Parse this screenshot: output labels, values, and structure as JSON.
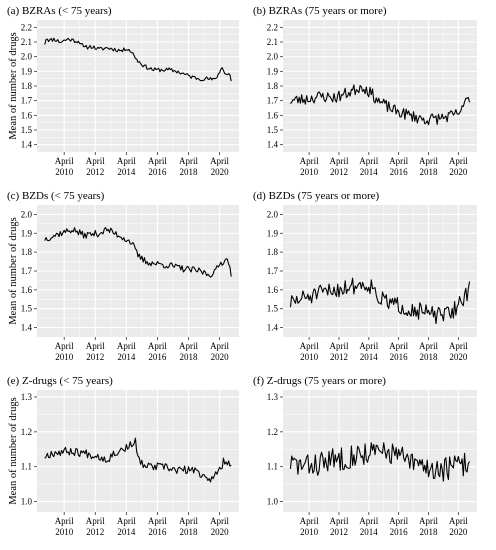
{
  "figure": {
    "background": "#ffffff",
    "panel_bg": "#ebebeb",
    "grid_color": "#ffffff",
    "line_color": "#000000"
  },
  "chart_data": [
    {
      "type": "line",
      "title": "(a)  BZRAs (< 75 years)",
      "ylabel": "Mean of number of drugs",
      "xlim": [
        2008.5,
        2021.5
      ],
      "ylim": [
        1.35,
        2.25
      ],
      "yticks": [
        1.4,
        1.5,
        1.6,
        1.7,
        1.8,
        1.9,
        2.0,
        2.1,
        2.2
      ],
      "yticklabels": [
        "1.4",
        "1.5",
        "1.6",
        "1.7",
        "1.8",
        "1.9",
        "2.0",
        "2.1",
        "2.2"
      ],
      "xticks": [
        2010.25,
        2012.25,
        2014.25,
        2016.25,
        2018.25,
        2020.25
      ],
      "xticklabels": [
        [
          "April",
          "2010"
        ],
        [
          "April",
          "2012"
        ],
        [
          "April",
          "2014"
        ],
        [
          "April",
          "2016"
        ],
        [
          "April",
          "2018"
        ],
        [
          "April",
          "2020"
        ]
      ],
      "grid": true,
      "series": [
        {
          "x_start": 2009.0,
          "x_end": 2021.0,
          "anchors": [
            [
              2009.0,
              2.09
            ],
            [
              2009.1,
              2.13
            ],
            [
              2009.3,
              2.11
            ],
            [
              2009.6,
              2.12
            ],
            [
              2010.0,
              2.1
            ],
            [
              2010.5,
              2.12
            ],
            [
              2010.9,
              2.11
            ],
            [
              2011.3,
              2.1
            ],
            [
              2011.5,
              2.06
            ],
            [
              2012.0,
              2.07
            ],
            [
              2012.5,
              2.05
            ],
            [
              2013.0,
              2.06
            ],
            [
              2013.5,
              2.05
            ],
            [
              2014.0,
              2.04
            ],
            [
              2014.3,
              2.06
            ],
            [
              2014.6,
              2.03
            ],
            [
              2015.0,
              1.97
            ],
            [
              2015.5,
              1.93
            ],
            [
              2016.0,
              1.91
            ],
            [
              2016.5,
              1.91
            ],
            [
              2017.0,
              1.91
            ],
            [
              2017.5,
              1.9
            ],
            [
              2018.0,
              1.88
            ],
            [
              2018.5,
              1.86
            ],
            [
              2019.0,
              1.85
            ],
            [
              2019.5,
              1.85
            ],
            [
              2019.9,
              1.84
            ],
            [
              2020.25,
              1.89
            ],
            [
              2020.4,
              1.94
            ],
            [
              2020.6,
              1.88
            ],
            [
              2020.9,
              1.88
            ],
            [
              2021.0,
              1.84
            ]
          ],
          "noise": 0.014,
          "seed": 11
        }
      ]
    },
    {
      "type": "line",
      "title": "(b)  BZRAs (75 years or more)",
      "ylabel": "",
      "xlim": [
        2008.5,
        2021.5
      ],
      "ylim": [
        1.35,
        2.25
      ],
      "yticks": [
        1.4,
        1.5,
        1.6,
        1.7,
        1.8,
        1.9,
        2.0,
        2.1,
        2.2
      ],
      "yticklabels": [
        "1.4",
        "1.5",
        "1.6",
        "1.7",
        "1.8",
        "1.9",
        "2.0",
        "2.1",
        "2.2"
      ],
      "xticks": [
        2010.25,
        2012.25,
        2014.25,
        2016.25,
        2018.25,
        2020.25
      ],
      "xticklabels": [
        [
          "April",
          "2010"
        ],
        [
          "April",
          "2012"
        ],
        [
          "April",
          "2014"
        ],
        [
          "April",
          "2016"
        ],
        [
          "April",
          "2018"
        ],
        [
          "April",
          "2020"
        ]
      ],
      "grid": true,
      "series": [
        {
          "x_start": 2009.0,
          "x_end": 2021.0,
          "anchors": [
            [
              2009.0,
              1.7
            ],
            [
              2010.0,
              1.71
            ],
            [
              2011.0,
              1.73
            ],
            [
              2012.0,
              1.72
            ],
            [
              2013.0,
              1.76
            ],
            [
              2013.8,
              1.8
            ],
            [
              2014.3,
              1.76
            ],
            [
              2015.0,
              1.69
            ],
            [
              2016.0,
              1.63
            ],
            [
              2017.0,
              1.6
            ],
            [
              2018.0,
              1.57
            ],
            [
              2019.0,
              1.58
            ],
            [
              2020.0,
              1.6
            ],
            [
              2020.6,
              1.64
            ],
            [
              2020.85,
              1.76
            ],
            [
              2021.0,
              1.69
            ]
          ],
          "noise": 0.04,
          "seed": 23
        }
      ]
    },
    {
      "type": "line",
      "title": "(c)  BZDs (< 75 years)",
      "ylabel": "Mean of number of drugs",
      "xlim": [
        2008.5,
        2021.5
      ],
      "ylim": [
        1.35,
        2.05
      ],
      "yticks": [
        1.4,
        1.5,
        1.6,
        1.7,
        1.8,
        1.9,
        2.0
      ],
      "yticklabels": [
        "1.4",
        "1.5",
        "1.6",
        "1.7",
        "1.8",
        "1.9",
        "2.0"
      ],
      "xticks": [
        2010.25,
        2012.25,
        2014.25,
        2016.25,
        2018.25,
        2020.25
      ],
      "xticklabels": [
        [
          "April",
          "2010"
        ],
        [
          "April",
          "2012"
        ],
        [
          "April",
          "2014"
        ],
        [
          "April",
          "2016"
        ],
        [
          "April",
          "2018"
        ],
        [
          "April",
          "2020"
        ]
      ],
      "grid": true,
      "series": [
        {
          "x_start": 2009.0,
          "x_end": 2021.0,
          "anchors": [
            [
              2009.0,
              1.87
            ],
            [
              2010.0,
              1.9
            ],
            [
              2010.8,
              1.92
            ],
            [
              2011.5,
              1.89
            ],
            [
              2012.5,
              1.9
            ],
            [
              2013.0,
              1.92
            ],
            [
              2013.5,
              1.9
            ],
            [
              2014.0,
              1.88
            ],
            [
              2014.6,
              1.85
            ],
            [
              2015.0,
              1.78
            ],
            [
              2015.5,
              1.75
            ],
            [
              2016.0,
              1.74
            ],
            [
              2017.0,
              1.73
            ],
            [
              2018.0,
              1.71
            ],
            [
              2019.0,
              1.7
            ],
            [
              2019.6,
              1.68
            ],
            [
              2020.0,
              1.7
            ],
            [
              2020.3,
              1.74
            ],
            [
              2020.6,
              1.76
            ],
            [
              2020.9,
              1.75
            ],
            [
              2021.0,
              1.68
            ]
          ],
          "noise": 0.018,
          "seed": 37
        }
      ]
    },
    {
      "type": "line",
      "title": "(d)  BZDs (75 years or more)",
      "ylabel": "",
      "xlim": [
        2008.5,
        2021.5
      ],
      "ylim": [
        1.35,
        2.05
      ],
      "yticks": [
        1.4,
        1.5,
        1.6,
        1.7,
        1.8,
        1.9,
        2.0
      ],
      "yticklabels": [
        "1.4",
        "1.5",
        "1.6",
        "1.7",
        "1.8",
        "1.9",
        "2.0"
      ],
      "xticks": [
        2010.25,
        2012.25,
        2014.25,
        2016.25,
        2018.25,
        2020.25
      ],
      "xticklabels": [
        [
          "April",
          "2010"
        ],
        [
          "April",
          "2012"
        ],
        [
          "April",
          "2014"
        ],
        [
          "April",
          "2016"
        ],
        [
          "April",
          "2018"
        ],
        [
          "April",
          "2020"
        ]
      ],
      "grid": true,
      "series": [
        {
          "x_start": 2009.0,
          "x_end": 2021.0,
          "anchors": [
            [
              2009.0,
              1.53
            ],
            [
              2010.0,
              1.56
            ],
            [
              2011.0,
              1.58
            ],
            [
              2012.0,
              1.6
            ],
            [
              2013.0,
              1.62
            ],
            [
              2014.0,
              1.63
            ],
            [
              2014.5,
              1.62
            ],
            [
              2015.0,
              1.55
            ],
            [
              2016.0,
              1.52
            ],
            [
              2017.0,
              1.5
            ],
            [
              2018.0,
              1.48
            ],
            [
              2019.0,
              1.46
            ],
            [
              2019.8,
              1.48
            ],
            [
              2020.5,
              1.55
            ],
            [
              2021.0,
              1.6
            ]
          ],
          "noise": 0.045,
          "seed": 51
        }
      ]
    },
    {
      "type": "line",
      "title": "(e)  Z-drugs (< 75 years)",
      "ylabel": "Mean of number of drugs",
      "xlim": [
        2008.5,
        2021.5
      ],
      "ylim": [
        0.97,
        1.32
      ],
      "yticks": [
        1.0,
        1.1,
        1.2,
        1.3
      ],
      "yticklabels": [
        "1.0",
        "1.1",
        "1.2",
        "1.3"
      ],
      "xticks": [
        2010.25,
        2012.25,
        2014.25,
        2016.25,
        2018.25,
        2020.25
      ],
      "xticklabels": [
        [
          "April",
          "2010"
        ],
        [
          "April",
          "2012"
        ],
        [
          "April",
          "2014"
        ],
        [
          "April",
          "2016"
        ],
        [
          "April",
          "2018"
        ],
        [
          "April",
          "2020"
        ]
      ],
      "grid": true,
      "series": [
        {
          "x_start": 2009.0,
          "x_end": 2021.0,
          "anchors": [
            [
              2009.0,
              1.13
            ],
            [
              2009.5,
              1.14
            ],
            [
              2010.5,
              1.145
            ],
            [
              2011.5,
              1.14
            ],
            [
              2012.5,
              1.13
            ],
            [
              2013.0,
              1.12
            ],
            [
              2013.5,
              1.14
            ],
            [
              2014.0,
              1.15
            ],
            [
              2014.5,
              1.16
            ],
            [
              2014.8,
              1.18
            ],
            [
              2015.0,
              1.12
            ],
            [
              2015.5,
              1.1
            ],
            [
              2016.5,
              1.1
            ],
            [
              2017.5,
              1.09
            ],
            [
              2018.5,
              1.09
            ],
            [
              2019.0,
              1.08
            ],
            [
              2019.5,
              1.07
            ],
            [
              2019.8,
              1.06
            ],
            [
              2020.2,
              1.09
            ],
            [
              2020.6,
              1.12
            ],
            [
              2021.0,
              1.11
            ]
          ],
          "noise": 0.012,
          "seed": 67
        }
      ]
    },
    {
      "type": "line",
      "title": "(f)  Z-drugs (75 years or more)",
      "ylabel": "",
      "xlim": [
        2008.5,
        2021.5
      ],
      "ylim": [
        0.97,
        1.32
      ],
      "yticks": [
        1.0,
        1.1,
        1.2,
        1.3
      ],
      "yticklabels": [
        "1.0",
        "1.1",
        "1.2",
        "1.3"
      ],
      "xticks": [
        2010.25,
        2012.25,
        2014.25,
        2016.25,
        2018.25,
        2020.25
      ],
      "xticklabels": [
        [
          "April",
          "2010"
        ],
        [
          "April",
          "2012"
        ],
        [
          "April",
          "2014"
        ],
        [
          "April",
          "2016"
        ],
        [
          "April",
          "2018"
        ],
        [
          "April",
          "2020"
        ]
      ],
      "grid": true,
      "series": [
        {
          "x_start": 2009.0,
          "x_end": 2021.0,
          "anchors": [
            [
              2009.0,
              1.11
            ],
            [
              2010.0,
              1.1
            ],
            [
              2011.0,
              1.11
            ],
            [
              2012.0,
              1.12
            ],
            [
              2013.0,
              1.13
            ],
            [
              2014.0,
              1.14
            ],
            [
              2015.0,
              1.14
            ],
            [
              2016.0,
              1.14
            ],
            [
              2017.0,
              1.11
            ],
            [
              2018.0,
              1.1
            ],
            [
              2019.0,
              1.09
            ],
            [
              2020.0,
              1.1
            ],
            [
              2021.0,
              1.11
            ]
          ],
          "noise": 0.035,
          "seed": 83
        }
      ]
    }
  ]
}
